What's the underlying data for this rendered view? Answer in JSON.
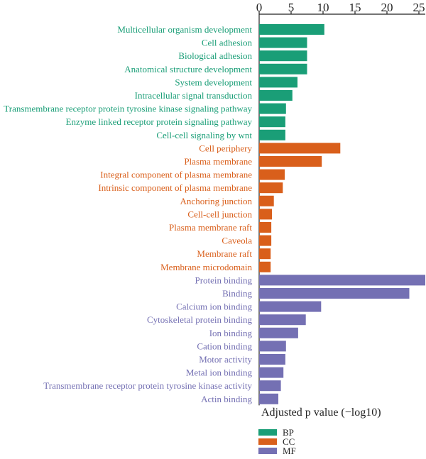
{
  "chart_data": {
    "type": "bar",
    "orientation": "horizontal",
    "xlabel": "Adjusted p value (−log10)",
    "xlim": [
      0,
      26
    ],
    "xticks": [
      0,
      5,
      10,
      15,
      20,
      25
    ],
    "axis_position": "top",
    "legend_position": "bottom-left",
    "grid": false,
    "groups": [
      {
        "name": "BP",
        "color": "#1a9e77"
      },
      {
        "name": "CC",
        "color": "#d95f1b"
      },
      {
        "name": "MF",
        "color": "#7470b3"
      }
    ],
    "categories": [
      "Multicellular organism development",
      "Cell adhesion",
      "Biological adhesion",
      "Anatomical structure development",
      "System development",
      "Intracellular signal transduction",
      "Transmembrane receptor protein tyrosine kinase signaling pathway",
      "Enzyme linked receptor protein signaling pathway",
      "Cell-cell signaling by wnt",
      "Cell periphery",
      "Plasma membrane",
      "Integral component of plasma membrane",
      "Intrinsic component of plasma membrane",
      "Anchoring junction",
      "Cell-cell junction",
      "Plasma membrane raft",
      "Caveola",
      "Membrane raft",
      "Membrane microdomain",
      "Protein binding",
      "Binding",
      "Calcium ion binding",
      "Cytoskeletal protein binding",
      "Ion binding",
      "Cation binding",
      "Motor activity",
      "Metal ion binding",
      "Transmembrane receptor protein tyrosine kinase activity",
      "Actin binding"
    ],
    "category_groups": [
      "BP",
      "BP",
      "BP",
      "BP",
      "BP",
      "BP",
      "BP",
      "BP",
      "BP",
      "CC",
      "CC",
      "CC",
      "CC",
      "CC",
      "CC",
      "CC",
      "CC",
      "CC",
      "CC",
      "MF",
      "MF",
      "MF",
      "MF",
      "MF",
      "MF",
      "MF",
      "MF",
      "MF",
      "MF"
    ],
    "values": [
      10.2,
      7.5,
      7.5,
      7.5,
      6.0,
      5.2,
      4.2,
      4.1,
      4.1,
      12.7,
      9.8,
      4.0,
      3.7,
      2.3,
      2.0,
      1.9,
      1.9,
      1.8,
      1.8,
      26.0,
      23.5,
      9.7,
      7.3,
      6.1,
      4.2,
      4.1,
      3.8,
      3.4,
      3.0
    ]
  }
}
